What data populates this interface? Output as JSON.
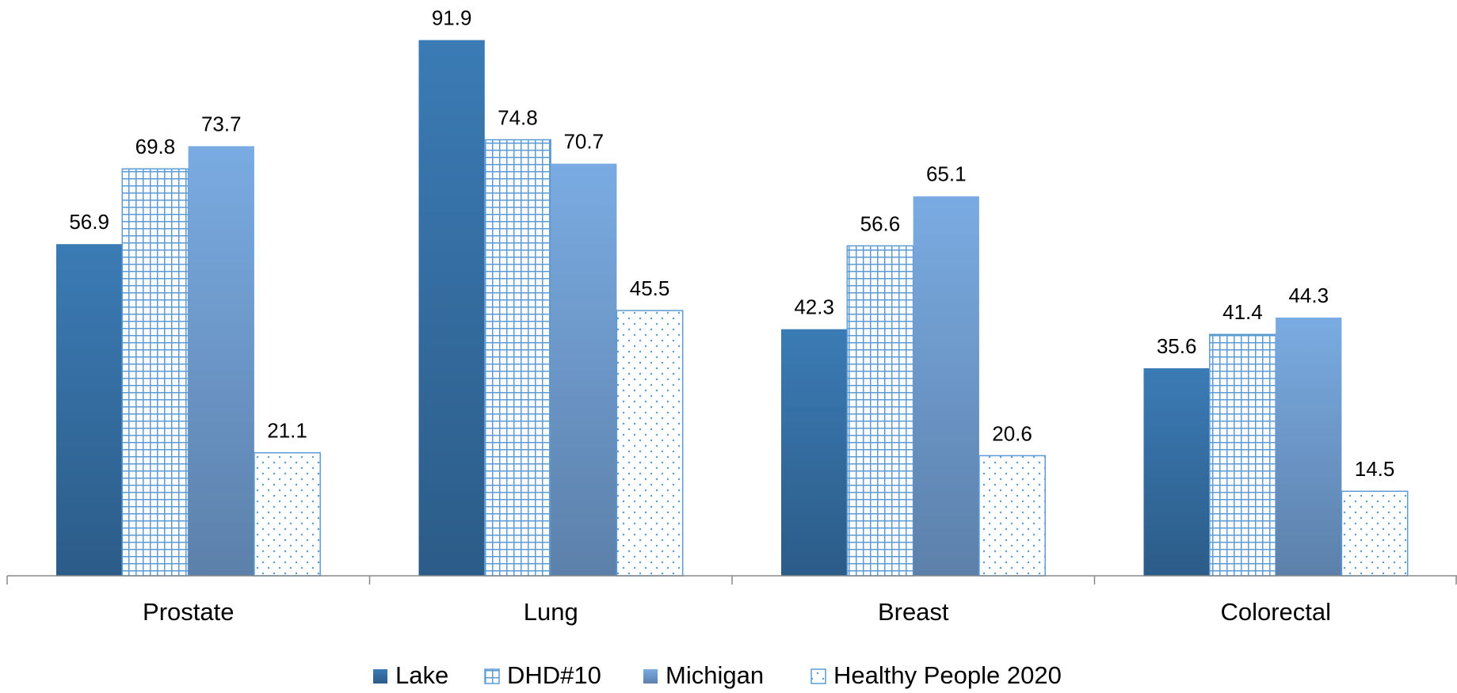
{
  "chart_data": {
    "type": "bar",
    "categories": [
      "Prostate",
      "Lung",
      "Breast",
      "Colorectal"
    ],
    "series": [
      {
        "name": "Lake",
        "color": "#3b7bb5",
        "fill": "solid",
        "values": [
          56.9,
          91.9,
          42.3,
          35.6
        ]
      },
      {
        "name": "DHD#10",
        "color": "#5b9bd5",
        "fill": "grid",
        "values": [
          69.8,
          74.8,
          56.6,
          41.4
        ]
      },
      {
        "name": "Michigan",
        "color": "#7aabe2",
        "fill": "solid",
        "values": [
          73.7,
          70.7,
          65.1,
          44.3
        ]
      },
      {
        "name": "Healthy People 2020",
        "color": "#5b9bd5",
        "fill": "dots",
        "values": [
          21.1,
          45.5,
          20.6,
          14.5
        ]
      }
    ],
    "ylim": [
      0,
      100
    ],
    "legend": "bottom"
  }
}
